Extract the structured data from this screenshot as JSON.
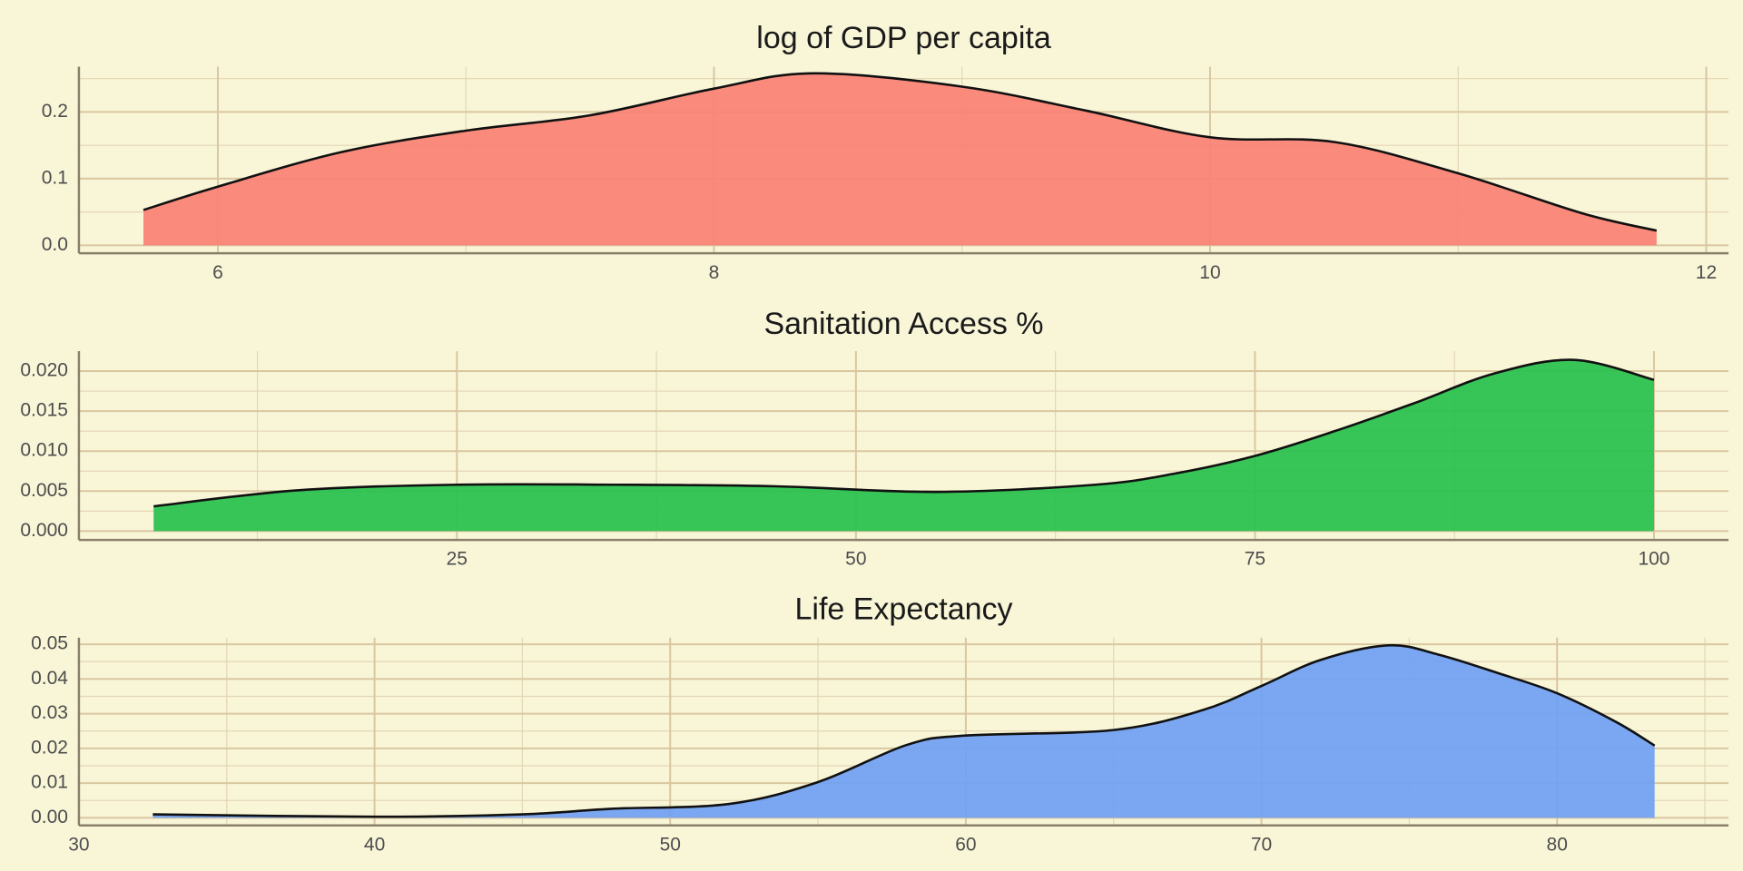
{
  "chart_data": [
    {
      "type": "area",
      "title": "log of GDP per capita",
      "color": "#fa8072",
      "x": [
        5.7,
        6.0,
        6.5,
        7.0,
        7.5,
        8.0,
        8.4,
        9.0,
        9.5,
        10.0,
        10.5,
        11.0,
        11.5,
        11.8
      ],
      "values": [
        0.053,
        0.088,
        0.14,
        0.172,
        0.195,
        0.235,
        0.258,
        0.238,
        0.202,
        0.162,
        0.155,
        0.108,
        0.048,
        0.022
      ],
      "xlim": [
        5.44,
        12.09
      ],
      "ylim": [
        -0.012,
        0.268
      ],
      "xticks": [
        6,
        8,
        10,
        12
      ],
      "yticks": [
        {
          "value": 0,
          "label": "0.0"
        },
        {
          "value": 0.1,
          "label": "0.1"
        },
        {
          "value": 0.2,
          "label": "0.2"
        }
      ],
      "grid": true
    },
    {
      "type": "area",
      "title": "Sanitation Access %",
      "color": "#22c04a",
      "x": [
        6,
        15,
        25,
        35,
        45,
        55,
        65,
        70,
        75,
        80,
        85,
        90,
        95,
        100
      ],
      "values": [
        0.0031,
        0.0051,
        0.0058,
        0.0058,
        0.0056,
        0.0049,
        0.0058,
        0.0072,
        0.0094,
        0.0125,
        0.016,
        0.0197,
        0.0214,
        0.0189
      ],
      "xlim": [
        1.32,
        104.67
      ],
      "ylim": [
        -0.0011,
        0.0225
      ],
      "xticks": [
        25,
        50,
        75,
        100
      ],
      "yticks": [
        {
          "value": 0,
          "label": "0.000"
        },
        {
          "value": 0.005,
          "label": "0.005"
        },
        {
          "value": 0.01,
          "label": "0.010"
        },
        {
          "value": 0.015,
          "label": "0.015"
        },
        {
          "value": 0.02,
          "label": "0.020"
        }
      ],
      "grid": true
    },
    {
      "type": "area",
      "title": "Life Expectancy",
      "color": "#6d9ef5",
      "x": [
        32.5,
        40,
        45,
        48,
        52,
        55,
        58,
        60,
        65,
        68,
        70,
        72,
        74.3,
        76,
        78,
        80,
        82,
        83.3
      ],
      "values": [
        0.001,
        0.0003,
        0.001,
        0.0026,
        0.004,
        0.0103,
        0.021,
        0.0237,
        0.0253,
        0.031,
        0.038,
        0.0455,
        0.0497,
        0.047,
        0.0417,
        0.0359,
        0.0276,
        0.0208
      ],
      "xlim": [
        30,
        85.8
      ],
      "ylim": [
        -0.0022,
        0.0519
      ],
      "xticks": [
        30,
        40,
        50,
        60,
        70,
        80
      ],
      "yticks": [
        {
          "value": 0,
          "label": "0.00"
        },
        {
          "value": 0.01,
          "label": "0.01"
        },
        {
          "value": 0.02,
          "label": "0.02"
        },
        {
          "value": 0.03,
          "label": "0.03"
        },
        {
          "value": 0.04,
          "label": "0.04"
        },
        {
          "value": 0.05,
          "label": "0.05"
        }
      ],
      "grid": true
    }
  ]
}
